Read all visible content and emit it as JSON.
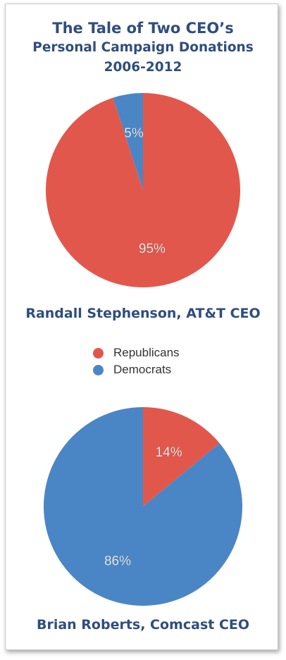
{
  "title": {
    "line1": "The Tale of Two CEO’s",
    "line2": "Personal Campaign Donations",
    "line3": "2006-2012"
  },
  "colors": {
    "republicans": "#e2574c",
    "democrats": "#4a86c5"
  },
  "legend": [
    {
      "label": "Republicans",
      "color": "#e2574c"
    },
    {
      "label": "Democrats",
      "color": "#4a86c5"
    }
  ],
  "chart_data": [
    {
      "type": "pie",
      "title": "Randall Stephenson, AT&T CEO",
      "slices": [
        {
          "name": "Democrats",
          "value": 5,
          "label": "5%",
          "color": "#4a86c5"
        },
        {
          "name": "Republicans",
          "value": 95,
          "label": "95%",
          "color": "#e2574c"
        }
      ]
    },
    {
      "type": "pie",
      "title": "Brian Roberts, Comcast CEO",
      "slices": [
        {
          "name": "Republicans",
          "value": 14,
          "label": "14%",
          "color": "#e2574c"
        },
        {
          "name": "Democrats",
          "value": 86,
          "label": "86%",
          "color": "#4a86c5"
        }
      ]
    }
  ]
}
